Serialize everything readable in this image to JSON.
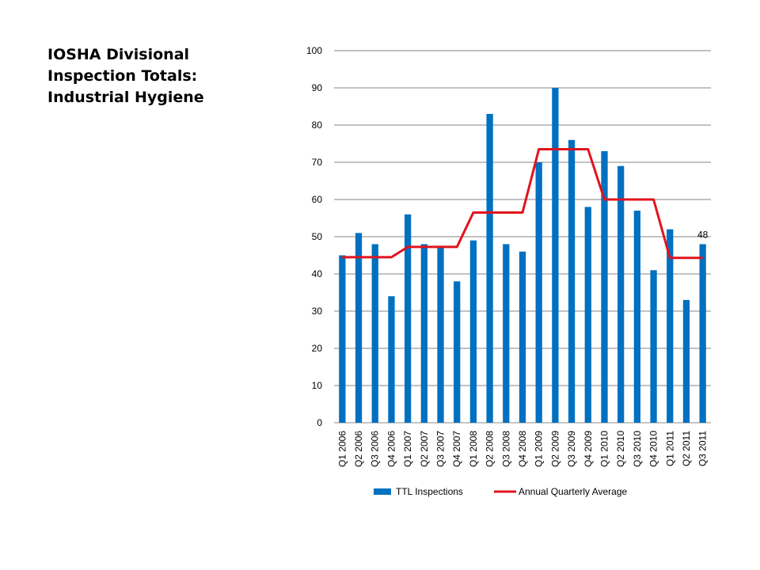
{
  "slide": {
    "title_lines": [
      "IOSHA Divisional",
      "Inspection Totals:",
      "Industrial Hygiene"
    ]
  },
  "chart_data": {
    "type": "bar",
    "categories": [
      "Q1 2006",
      "Q2 2006",
      "Q3 2006",
      "Q4 2006",
      "Q1 2007",
      "Q2 2007",
      "Q3 2007",
      "Q4 2007",
      "Q1 2008",
      "Q2 2008",
      "Q3 2008",
      "Q4 2008",
      "Q1 2009",
      "Q2 2009",
      "Q3 2009",
      "Q4 2009",
      "Q1 2010",
      "Q2 2010",
      "Q3 2010",
      "Q4 2010",
      "Q1 2011",
      "Q2 2011",
      "Q3 2011"
    ],
    "series": [
      {
        "name": "TTL Inspections",
        "type": "bar",
        "color": "#0070C0",
        "values": [
          45,
          51,
          48,
          34,
          56,
          48,
          47,
          38,
          49,
          83,
          48,
          46,
          70,
          90,
          76,
          58,
          73,
          69,
          57,
          41,
          52,
          33,
          48
        ]
      },
      {
        "name": "Annual Quarterly Average",
        "type": "line",
        "color": "#E0141E",
        "values": [
          44.5,
          44.5,
          44.5,
          44.5,
          47.25,
          47.25,
          47.25,
          47.25,
          56.5,
          56.5,
          56.5,
          56.5,
          73.5,
          73.5,
          73.5,
          73.5,
          60,
          60,
          60,
          60,
          44.3,
          44.3,
          44.3
        ]
      }
    ],
    "data_labels": [
      {
        "category": "Q3 2011",
        "text": "48"
      }
    ],
    "yticks": [
      "0",
      "10",
      "20",
      "30",
      "40",
      "50",
      "60",
      "70",
      "80",
      "90",
      "100"
    ],
    "ylim": [
      0,
      100
    ],
    "grid": true,
    "legend_position": "bottom"
  }
}
